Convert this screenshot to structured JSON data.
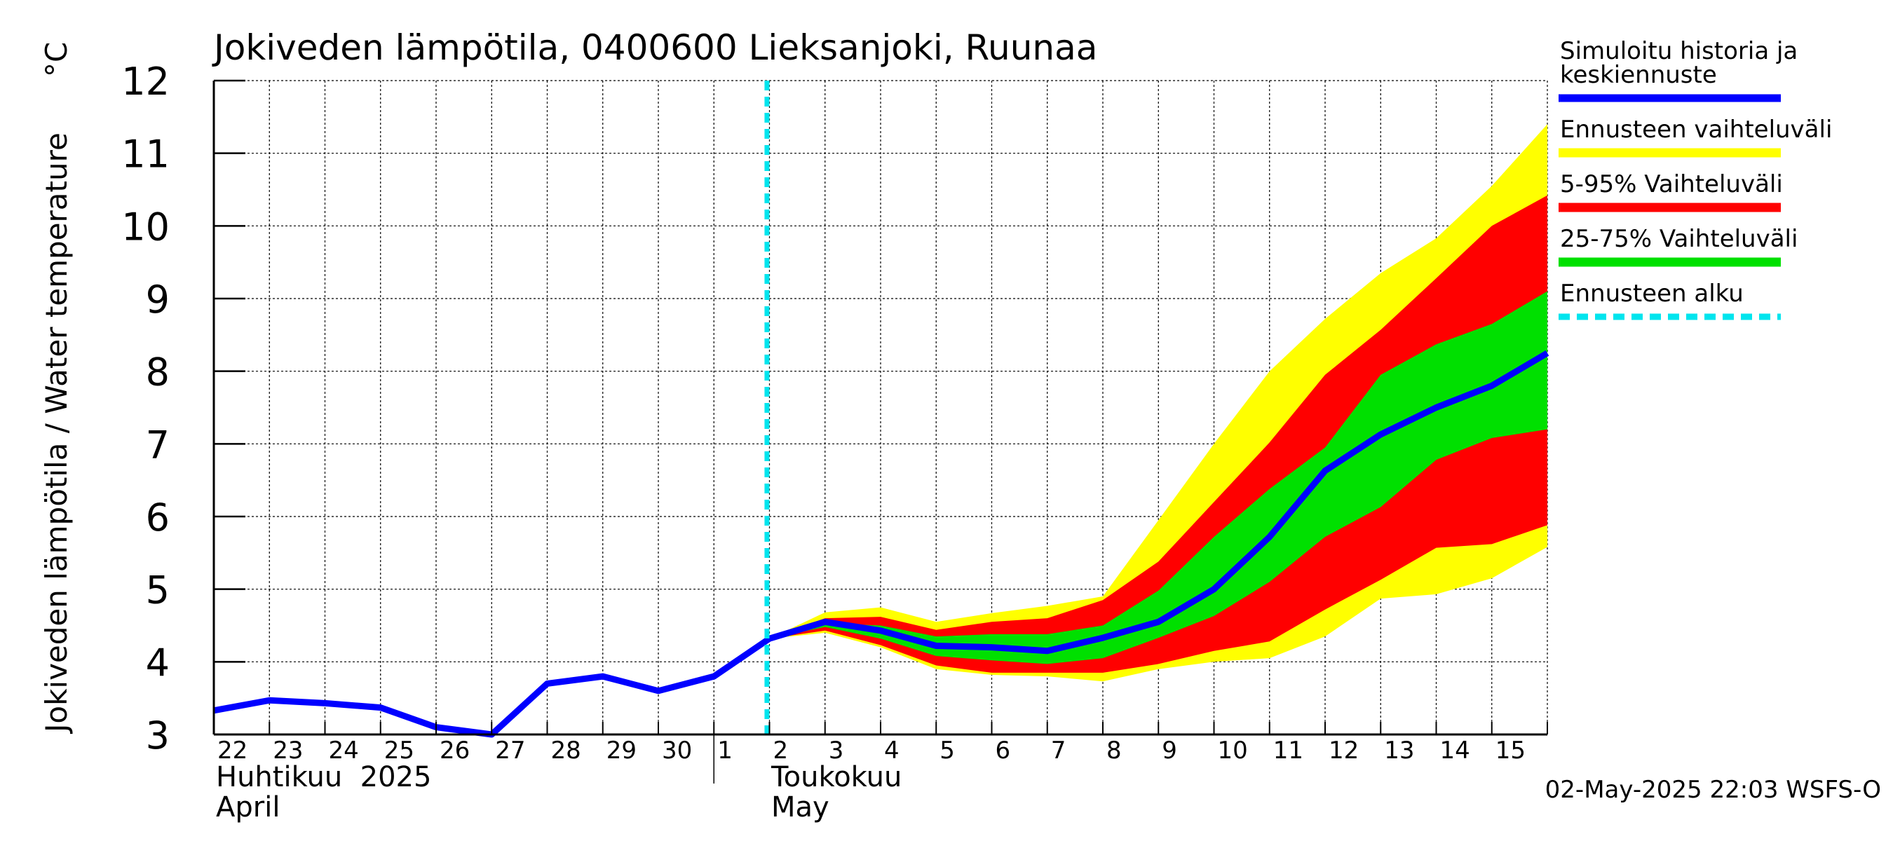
{
  "chart_data": {
    "type": "area",
    "title": "Jokiveden lämpötila, 0400600 Lieksanjoki, Ruunaa",
    "ylabel": "Jokiveden lämpötila / Water temperature",
    "yunit": "°C",
    "ylim": [
      3,
      12
    ],
    "yticks": [
      3,
      4,
      5,
      6,
      7,
      8,
      9,
      10,
      11,
      12
    ],
    "xlim": [
      "2025-04-22",
      "2025-05-16"
    ],
    "day_labels": [
      "22",
      "23",
      "24",
      "25",
      "26",
      "27",
      "28",
      "29",
      "30",
      "1",
      "2",
      "3",
      "4",
      "5",
      "6",
      "7",
      "8",
      "9",
      "10",
      "11",
      "12",
      "13",
      "14",
      "15"
    ],
    "month_labels": [
      {
        "fi": "Huhtikuu  2025",
        "en": "April"
      },
      {
        "fi": "Toukokuu",
        "en": "May"
      }
    ],
    "grid": true,
    "legend_position": "right",
    "forecast_start": "2025-05-02",
    "footer": "02-May-2025 22:03 WSFS-O",
    "series": [
      {
        "name": "Simuloitu historia ja keskiennuste",
        "color": "#0000ff",
        "type": "line",
        "x": [
          "2025-04-22",
          "2025-04-23",
          "2025-04-24",
          "2025-04-25",
          "2025-04-26",
          "2025-04-27",
          "2025-04-28",
          "2025-04-29",
          "2025-04-30",
          "2025-05-01",
          "2025-05-02",
          "2025-05-03",
          "2025-05-04",
          "2025-05-05",
          "2025-05-06",
          "2025-05-07",
          "2025-05-08",
          "2025-05-09",
          "2025-05-10",
          "2025-05-11",
          "2025-05-12",
          "2025-05-13",
          "2025-05-14",
          "2025-05-15",
          "2025-05-16"
        ],
        "y": [
          3.33,
          3.47,
          3.43,
          3.37,
          3.1,
          3.0,
          3.7,
          3.8,
          3.6,
          3.8,
          4.32,
          4.55,
          4.43,
          4.22,
          4.2,
          4.15,
          4.33,
          4.55,
          5.0,
          5.72,
          6.63,
          7.13,
          7.5,
          7.8,
          8.25
        ]
      },
      {
        "name": "Ennusteen vaihteluväli",
        "color": "#ffff00",
        "type": "band",
        "x": [
          "2025-05-02",
          "2025-05-03",
          "2025-05-04",
          "2025-05-05",
          "2025-05-06",
          "2025-05-07",
          "2025-05-08",
          "2025-05-09",
          "2025-05-10",
          "2025-05-11",
          "2025-05-12",
          "2025-05-13",
          "2025-05-14",
          "2025-05-15",
          "2025-05-16"
        ],
        "upper": [
          4.32,
          4.68,
          4.75,
          4.55,
          4.67,
          4.77,
          4.9,
          5.95,
          7.0,
          8.0,
          8.72,
          9.35,
          9.83,
          10.55,
          11.4
        ],
        "lower": [
          4.32,
          4.4,
          4.2,
          3.9,
          3.82,
          3.8,
          3.73,
          3.9,
          4.0,
          4.05,
          4.35,
          4.87,
          4.93,
          5.15,
          5.58
        ]
      },
      {
        "name": "5-95% Vaihteluväli",
        "color": "#ff0000",
        "type": "band",
        "x": [
          "2025-05-02",
          "2025-05-03",
          "2025-05-04",
          "2025-05-05",
          "2025-05-06",
          "2025-05-07",
          "2025-05-08",
          "2025-05-09",
          "2025-05-10",
          "2025-05-11",
          "2025-05-12",
          "2025-05-13",
          "2025-05-14",
          "2025-05-15",
          "2025-05-16"
        ],
        "upper": [
          4.32,
          4.6,
          4.62,
          4.44,
          4.55,
          4.6,
          4.85,
          5.38,
          6.2,
          7.02,
          7.95,
          8.57,
          9.28,
          10.0,
          10.42
        ],
        "lower": [
          4.32,
          4.43,
          4.23,
          3.95,
          3.85,
          3.85,
          3.85,
          3.97,
          4.15,
          4.28,
          4.72,
          5.13,
          5.57,
          5.62,
          5.88
        ]
      },
      {
        "name": "25-75% Vaihteluväli",
        "color": "#00e000",
        "type": "band",
        "x": [
          "2025-05-02",
          "2025-05-03",
          "2025-05-04",
          "2025-05-05",
          "2025-05-06",
          "2025-05-07",
          "2025-05-08",
          "2025-05-09",
          "2025-05-10",
          "2025-05-11",
          "2025-05-12",
          "2025-05-13",
          "2025-05-14",
          "2025-05-15",
          "2025-05-16"
        ],
        "upper": [
          4.32,
          4.53,
          4.5,
          4.35,
          4.38,
          4.38,
          4.5,
          4.98,
          5.72,
          6.38,
          6.95,
          7.95,
          8.37,
          8.65,
          9.1
        ],
        "lower": [
          4.32,
          4.48,
          4.32,
          4.08,
          4.02,
          3.97,
          4.05,
          4.33,
          4.63,
          5.1,
          5.72,
          6.13,
          6.78,
          7.08,
          7.2
        ]
      },
      {
        "name": "Ennusteen alku",
        "color": "#00e5ee",
        "type": "vline"
      }
    ]
  }
}
